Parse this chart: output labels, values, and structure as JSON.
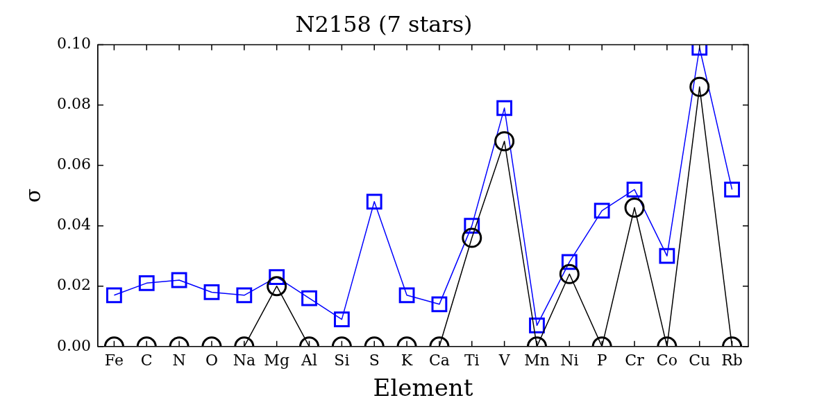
{
  "chart_data": {
    "type": "line",
    "title": "N2158 (7 stars)",
    "xlabel": "Element",
    "ylabel": "σ",
    "categories": [
      "Fe",
      "C",
      "N",
      "O",
      "Na",
      "Mg",
      "Al",
      "Si",
      "S",
      "K",
      "Ca",
      "Ti",
      "V",
      "Mn",
      "Ni",
      "P",
      "Cr",
      "Co",
      "Cu",
      "Rb"
    ],
    "ylim": [
      0,
      0.1
    ],
    "yticks": [
      {
        "value": 0,
        "label": "0.00"
      },
      {
        "value": 0.02,
        "label": "0.02"
      },
      {
        "value": 0.04,
        "label": "0.04"
      },
      {
        "value": 0.06,
        "label": "0.06"
      },
      {
        "value": 0.08,
        "label": "0.08"
      },
      {
        "value": 0.1,
        "label": "0.10"
      }
    ],
    "grid": false,
    "legend": false,
    "series": [
      {
        "color": "#000000",
        "marker": "circle",
        "values": [
          0,
          0,
          0,
          0,
          0,
          0.02,
          0,
          0,
          0,
          0,
          0,
          0.036,
          0.068,
          0,
          0.024,
          0,
          0.046,
          0,
          0.086,
          0
        ]
      },
      {
        "color": "#0000ff",
        "marker": "square",
        "values": [
          0.017,
          0.021,
          0.022,
          0.018,
          0.017,
          0.023,
          0.016,
          0.009,
          0.048,
          0.017,
          0.014,
          0.04,
          0.079,
          0.007,
          0.028,
          0.045,
          0.052,
          0.03,
          0.099,
          0.052
        ]
      }
    ]
  }
}
